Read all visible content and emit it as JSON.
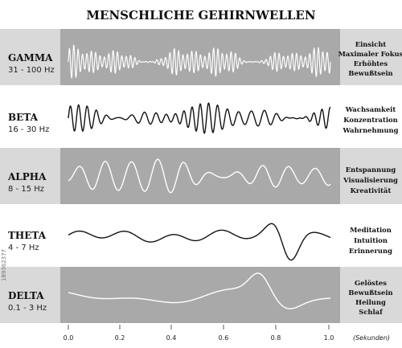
{
  "title": "MENSCHLICHE GEHIRNWELLEN",
  "colors": {
    "band_dark_bg": "#a9a9a9",
    "band_light_bg": "#ffffff",
    "label_dark_bg": "#d9d9d9",
    "label_light_bg": "#ffffff",
    "wave_on_dark": "#ffffff",
    "wave_on_light": "#111111"
  },
  "bands": [
    {
      "name": "GAMMA",
      "range": "31 - 100 Hz",
      "descriptions": [
        "Einsicht",
        "Maximaler Fokus",
        "Erhöhtes",
        "Bewußtsein"
      ]
    },
    {
      "name": "BETA",
      "range": "16 - 30 Hz",
      "descriptions": [
        "Wachsamkeit",
        "Konzentration",
        "Wahrnehmung"
      ]
    },
    {
      "name": "ALPHA",
      "range": "8 - 15 Hz",
      "descriptions": [
        "Entspannung",
        "Visualisierung",
        "Kreativität"
      ]
    },
    {
      "name": "THETA",
      "range": "4 - 7 Hz",
      "descriptions": [
        "Meditation",
        "Intuition",
        "Erinnerung"
      ]
    },
    {
      "name": "DELTA",
      "range": "0.1 - 3 Hz",
      "descriptions": [
        "Gelöstes",
        "Bewußtsein",
        "Heilung",
        "Schlaf"
      ]
    }
  ],
  "axis": {
    "ticks": [
      "0.0",
      "0.2",
      "0.4",
      "0.6",
      "0.8",
      "1.0"
    ],
    "unit": "(Sekunden)"
  },
  "watermark_id": "189362377"
}
